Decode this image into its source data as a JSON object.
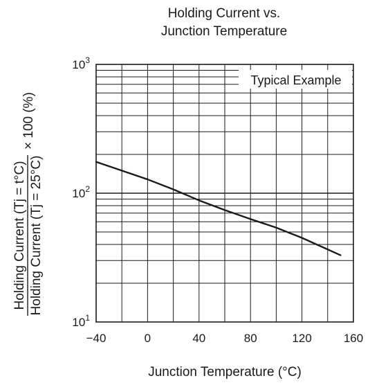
{
  "chart_data": {
    "type": "line",
    "title_line1": "Holding Current vs.",
    "title_line2": "Junction Temperature",
    "xlabel": "Junction Temperature  (°C)",
    "ylabel_numerator": "Holding Current (Tj = t°C)",
    "ylabel_denominator": "Holding Current (Tj = 25°C)",
    "ylabel_suffix": "× 100 (%)",
    "legend": "Typical Example",
    "x_ticks": [
      "−40",
      "0",
      "40",
      "80",
      "120",
      "160"
    ],
    "y_ticks": [
      {
        "base": "10",
        "exp": "1"
      },
      {
        "base": "10",
        "exp": "2"
      },
      {
        "base": "10",
        "exp": "3"
      }
    ],
    "xlim": [
      -40,
      160
    ],
    "ylim": [
      10,
      1000
    ],
    "y_scale": "log",
    "grid": true,
    "legend_position": "top-right",
    "series": [
      {
        "x": [
          -40,
          0,
          20,
          40,
          60,
          80,
          100,
          120,
          150
        ],
        "y": [
          175,
          128,
          107,
          88,
          74,
          63,
          54,
          45,
          33
        ]
      }
    ]
  }
}
